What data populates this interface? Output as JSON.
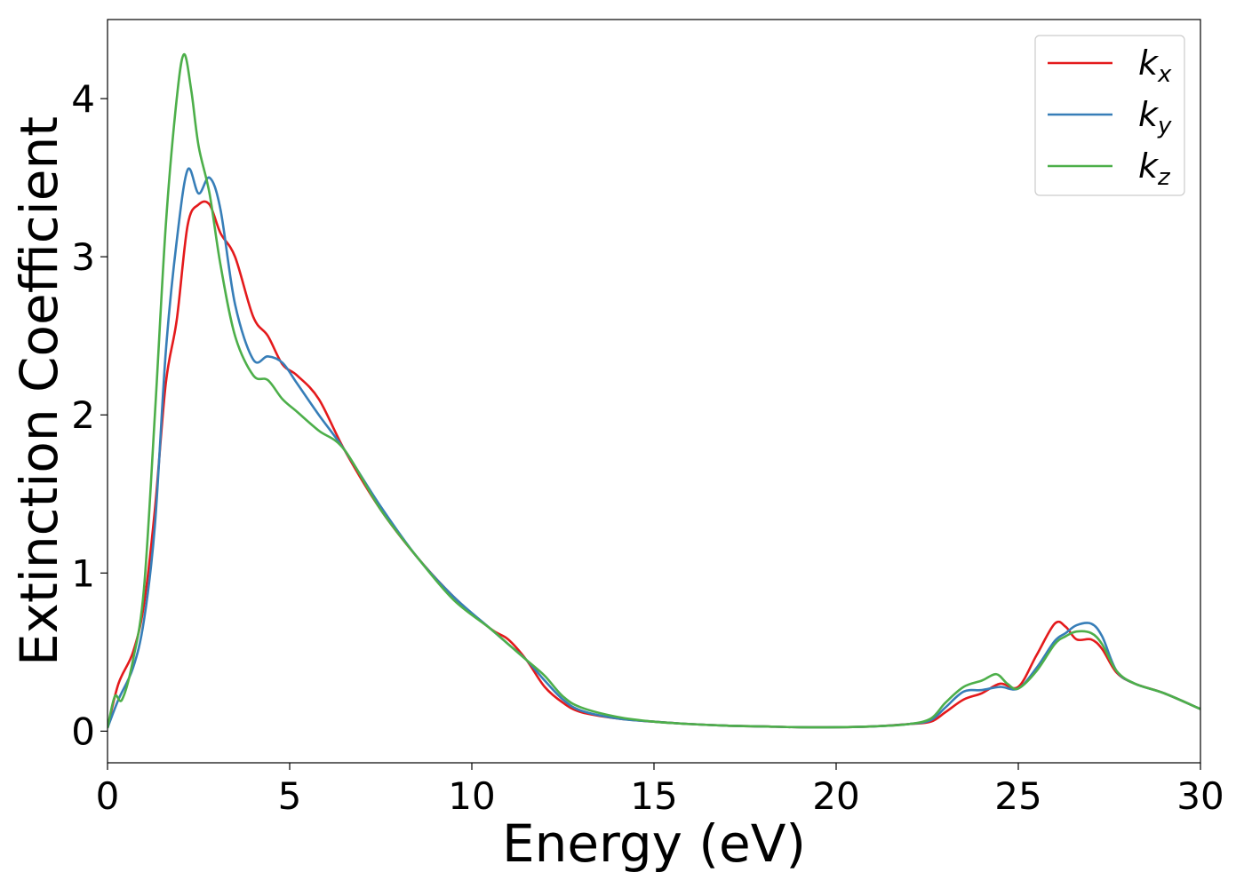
{
  "chart_data": {
    "type": "line",
    "xlabel": "Energy (eV)",
    "ylabel": "Extinction Coefficient",
    "xlim": [
      0,
      30
    ],
    "ylim": [
      -0.2,
      4.5
    ],
    "xticks": [
      0,
      5,
      10,
      15,
      20,
      25,
      30
    ],
    "yticks": [
      0,
      1,
      2,
      3,
      4
    ],
    "grid": false,
    "legend_position": "top-right",
    "series": [
      {
        "name": "k_x",
        "label_base": "k",
        "label_sub": "x",
        "color": "#e41a1c",
        "x": [
          0,
          0.3,
          0.7,
          1.0,
          1.3,
          1.6,
          1.9,
          2.2,
          2.5,
          2.8,
          3.1,
          3.5,
          4.0,
          4.4,
          4.8,
          5.2,
          5.8,
          6.5,
          7.5,
          8.5,
          9.5,
          10.5,
          11.0,
          11.5,
          12.0,
          12.5,
          13.0,
          14.0,
          15.0,
          16.0,
          17.0,
          18.0,
          19.0,
          20.0,
          21.0,
          22.0,
          22.6,
          23.0,
          23.5,
          24.0,
          24.5,
          25.0,
          25.5,
          26.0,
          26.3,
          26.6,
          27.0,
          27.3,
          27.7,
          28.2,
          29.0,
          30.0
        ],
        "y": [
          0.02,
          0.3,
          0.5,
          0.8,
          1.4,
          2.2,
          2.6,
          3.2,
          3.33,
          3.33,
          3.15,
          3.0,
          2.62,
          2.5,
          2.32,
          2.25,
          2.1,
          1.78,
          1.4,
          1.1,
          0.85,
          0.65,
          0.58,
          0.45,
          0.28,
          0.18,
          0.12,
          0.08,
          0.06,
          0.045,
          0.035,
          0.03,
          0.025,
          0.025,
          0.03,
          0.045,
          0.06,
          0.12,
          0.2,
          0.24,
          0.3,
          0.28,
          0.48,
          0.68,
          0.66,
          0.58,
          0.58,
          0.52,
          0.37,
          0.3,
          0.24,
          0.14
        ]
      },
      {
        "name": "k_y",
        "label_base": "k",
        "label_sub": "y",
        "color": "#377eb8",
        "x": [
          0,
          0.3,
          0.7,
          1.0,
          1.3,
          1.6,
          1.9,
          2.2,
          2.5,
          2.8,
          3.1,
          3.5,
          4.0,
          4.4,
          4.8,
          5.2,
          5.8,
          6.5,
          7.5,
          8.5,
          9.5,
          10.5,
          11.0,
          11.5,
          12.0,
          12.5,
          13.0,
          14.0,
          15.0,
          16.0,
          17.0,
          18.0,
          19.0,
          20.0,
          21.0,
          22.0,
          22.6,
          23.0,
          23.5,
          24.0,
          24.5,
          25.0,
          25.5,
          26.0,
          26.3,
          26.6,
          27.0,
          27.3,
          27.7,
          28.2,
          29.0,
          30.0
        ],
        "y": [
          0.02,
          0.2,
          0.4,
          0.7,
          1.3,
          2.4,
          3.1,
          3.55,
          3.4,
          3.5,
          3.3,
          2.7,
          2.35,
          2.37,
          2.33,
          2.2,
          2.0,
          1.78,
          1.42,
          1.1,
          0.85,
          0.65,
          0.55,
          0.45,
          0.32,
          0.2,
          0.13,
          0.08,
          0.06,
          0.045,
          0.035,
          0.03,
          0.025,
          0.025,
          0.03,
          0.045,
          0.07,
          0.15,
          0.25,
          0.26,
          0.28,
          0.27,
          0.4,
          0.57,
          0.62,
          0.67,
          0.68,
          0.6,
          0.38,
          0.3,
          0.24,
          0.14
        ]
      },
      {
        "name": "k_z",
        "label_base": "k",
        "label_sub": "z",
        "color": "#4daf4a",
        "x": [
          0,
          0.2,
          0.4,
          0.7,
          1.0,
          1.3,
          1.6,
          1.9,
          2.1,
          2.3,
          2.5,
          2.8,
          3.1,
          3.5,
          4.0,
          4.4,
          4.8,
          5.2,
          5.8,
          6.5,
          7.5,
          8.5,
          9.5,
          10.5,
          11.0,
          11.5,
          12.0,
          12.5,
          13.0,
          14.0,
          15.0,
          16.0,
          17.0,
          18.0,
          19.0,
          20.0,
          21.0,
          22.0,
          22.6,
          23.0,
          23.5,
          24.0,
          24.4,
          24.7,
          25.0,
          25.5,
          26.0,
          26.3,
          26.6,
          27.0,
          27.3,
          27.7,
          28.2,
          29.0,
          30.0
        ],
        "y": [
          0.02,
          0.22,
          0.2,
          0.45,
          0.9,
          2.0,
          3.2,
          4.0,
          4.28,
          4.05,
          3.7,
          3.4,
          2.95,
          2.5,
          2.25,
          2.22,
          2.1,
          2.02,
          1.9,
          1.78,
          1.4,
          1.1,
          0.83,
          0.65,
          0.55,
          0.45,
          0.35,
          0.22,
          0.15,
          0.09,
          0.06,
          0.045,
          0.035,
          0.03,
          0.025,
          0.025,
          0.03,
          0.045,
          0.08,
          0.18,
          0.28,
          0.32,
          0.36,
          0.3,
          0.27,
          0.38,
          0.55,
          0.6,
          0.63,
          0.62,
          0.55,
          0.38,
          0.3,
          0.24,
          0.14
        ]
      }
    ]
  }
}
